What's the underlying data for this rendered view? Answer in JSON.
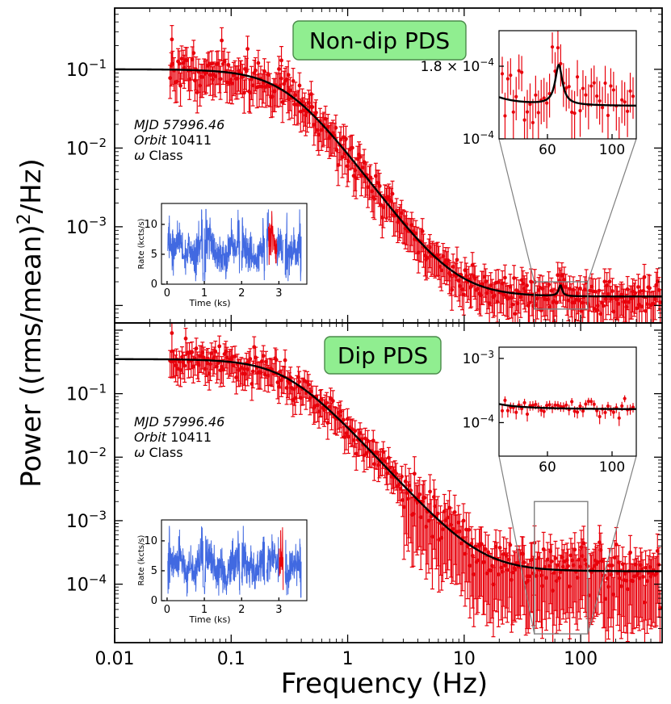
{
  "figure": {
    "ylabel": "Power ((rms/mean)",
    "ylabel_sup": "2",
    "ylabel_tail": "/Hz)",
    "xlabel": "Frequency (Hz)"
  },
  "chart_data": [
    {
      "type": "scatter",
      "panel": "top",
      "title": "Non-dip PDS",
      "xscale": "log",
      "yscale": "log",
      "xlim": [
        0.01,
        500
      ],
      "ylim": [
        6e-05,
        0.6
      ],
      "x_ticks": [],
      "y_ticks": [
        {
          "value": 0.1,
          "base": "10",
          "exp": "−1"
        },
        {
          "value": 0.01,
          "base": "10",
          "exp": "−2"
        },
        {
          "value": 0.001,
          "base": "10",
          "exp": "−3"
        }
      ],
      "annotation": {
        "mjd_italic": "MJD",
        "mjd_value": " 57996.46",
        "orbit_italic": "Orbit",
        "orbit_value": " 10411",
        "class_symbol": "ω",
        "class_value": " Class"
      },
      "model": {
        "type": "lorentzian+constant",
        "norm": 0.1,
        "break_hz": 0.3,
        "index": 2,
        "constant": 0.00013,
        "qpo_hz": 67,
        "qpo_amp": 5e-05,
        "qpo_width_hz": 5
      },
      "scatter_seed": 11,
      "point_count": 380,
      "highlight_points": [
        {
          "x": 0.031,
          "y": 0.24
        },
        {
          "x": 0.27,
          "y": 0.13
        },
        {
          "x": 0.31,
          "y": 0.085
        }
      ],
      "zoom_region": {
        "x": [
          40,
          115
        ],
        "y": [
          9e-05,
          0.0002
        ]
      },
      "inset_pds": {
        "xlim": [
          30,
          115
        ],
        "ylim": [
          0.0001,
          0.00024
        ],
        "x_ticks": [
          {
            "value": 60,
            "label": "60"
          },
          {
            "value": 100,
            "label": "100"
          }
        ],
        "y_ticks": [
          {
            "value": 0.00018,
            "mant": "1.8 × 10",
            "exp": "−4"
          },
          {
            "value": 0.0001,
            "mant": "10",
            "exp": "−4"
          }
        ]
      },
      "inset_lightcurve": {
        "xlabel": "Time (ks)",
        "ylabel": "Rate (kcts/s)",
        "xlim": [
          -0.15,
          3.75
        ],
        "ylim": [
          0,
          13.5
        ],
        "x_ticks": [
          {
            "value": 0,
            "label": "0"
          },
          {
            "value": 1,
            "label": "1"
          },
          {
            "value": 2,
            "label": "2"
          },
          {
            "value": 3,
            "label": "3"
          }
        ],
        "y_ticks": [
          {
            "value": 0,
            "label": "0"
          },
          {
            "value": 5,
            "label": "5"
          },
          {
            "value": 10,
            "label": "10"
          }
        ],
        "highlight_range_ks": [
          2.72,
          2.95
        ]
      }
    },
    {
      "type": "scatter",
      "panel": "bottom",
      "title": "Dip PDS",
      "xscale": "log",
      "yscale": "log",
      "xlim": [
        0.01,
        500
      ],
      "ylim": [
        1.2e-05,
        1.3
      ],
      "x_ticks": [
        {
          "value": 0.01,
          "label": "0.01"
        },
        {
          "value": 0.1,
          "label": "0.1"
        },
        {
          "value": 1,
          "label": "1"
        },
        {
          "value": 10,
          "label": "10"
        },
        {
          "value": 100,
          "label": "100"
        }
      ],
      "y_ticks": [
        {
          "value": 0.1,
          "base": "10",
          "exp": "−1"
        },
        {
          "value": 0.01,
          "base": "10",
          "exp": "−2"
        },
        {
          "value": 0.001,
          "base": "10",
          "exp": "−3"
        },
        {
          "value": 0.0001,
          "base": "10",
          "exp": "−4"
        }
      ],
      "annotation": {
        "mjd_italic": "MJD",
        "mjd_value": " 57996.46",
        "orbit_italic": "Orbit",
        "orbit_value": " 10411",
        "class_symbol": "ω",
        "class_value": " Class"
      },
      "model": {
        "type": "lorentzian+constant",
        "norm": 0.35,
        "break_hz": 0.3,
        "index": 2,
        "constant": 0.00016,
        "qpo_hz": 67,
        "qpo_amp": 0,
        "qpo_width_hz": 5
      },
      "scatter_seed": 29,
      "point_count": 380,
      "highlight_points": [
        {
          "x": 0.031,
          "y": 0.9
        },
        {
          "x": 0.063,
          "y": 0.3
        }
      ],
      "zoom_region": {
        "x": [
          40,
          115
        ],
        "y": [
          1.65e-05,
          0.002
        ]
      },
      "inset_pds": {
        "xlim": [
          30,
          115
        ],
        "ylim": [
          3e-05,
          0.0015
        ],
        "x_ticks": [
          {
            "value": 60,
            "label": "60"
          },
          {
            "value": 100,
            "label": "100"
          }
        ],
        "y_ticks": [
          {
            "value": 0.001,
            "mant": "10",
            "exp": "−3"
          },
          {
            "value": 0.0001,
            "mant": "10",
            "exp": "−4"
          }
        ]
      },
      "inset_lightcurve": {
        "xlabel": "Time (ks)",
        "ylabel": "Rate (kcts/s)",
        "xlim": [
          -0.15,
          3.75
        ],
        "ylim": [
          0,
          13.5
        ],
        "x_ticks": [
          {
            "value": 0,
            "label": "0"
          },
          {
            "value": 1,
            "label": "1"
          },
          {
            "value": 2,
            "label": "2"
          },
          {
            "value": 3,
            "label": "3"
          }
        ],
        "y_ticks": [
          {
            "value": 0,
            "label": "0"
          },
          {
            "value": 5,
            "label": "5"
          },
          {
            "value": 10,
            "label": "10"
          }
        ],
        "highlight_range_ks": [
          3.0,
          3.15
        ]
      }
    }
  ]
}
